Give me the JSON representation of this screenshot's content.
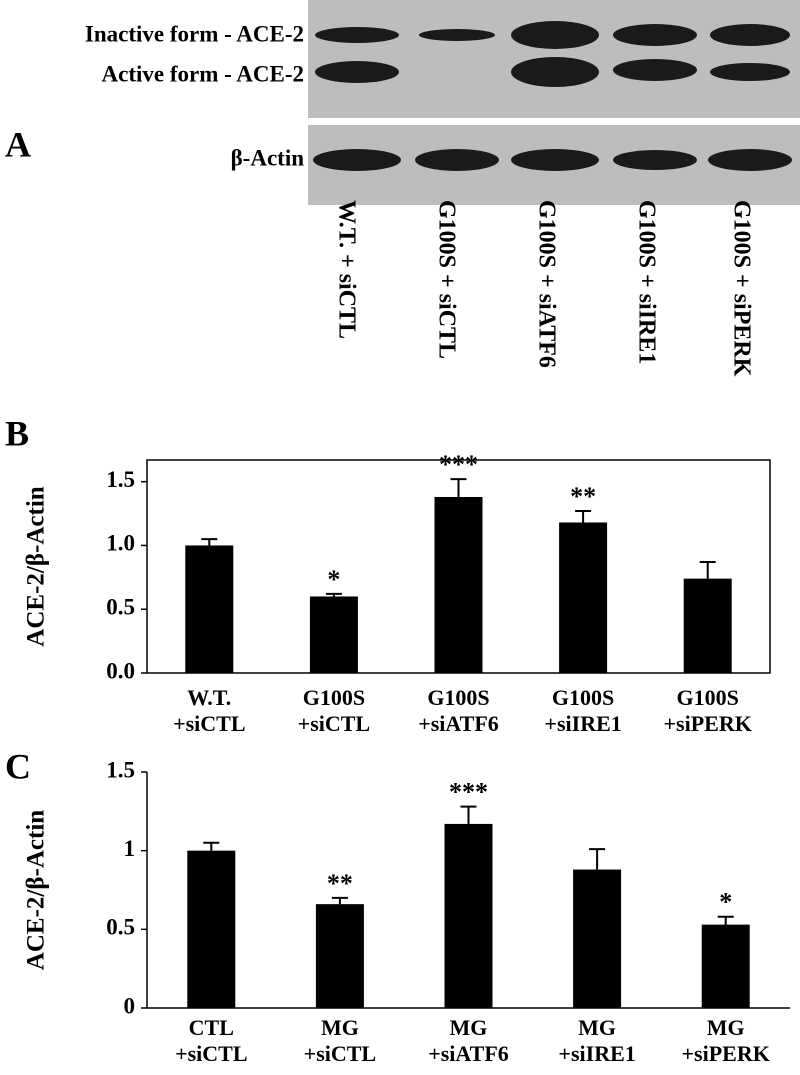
{
  "blot": {
    "panel_label": "A",
    "band_labels": [
      "Inactive form - ACE-2",
      "Active form - ACE-2",
      "β-Actin"
    ],
    "lane_labels": [
      "W.T. + siCTL",
      "G100S + siCTL",
      "G100S + siATF6",
      "G100S + siIRE1",
      "G100S + siPERK"
    ]
  },
  "chart_data": [
    {
      "type": "bar",
      "panel_label": "B",
      "y_label": "ACE-2/β-Actin",
      "categories": [
        "W.T.\n+siCTL",
        "G100S\n+siCTL",
        "G100S\n+siATF6",
        "G100S\n+siIRE1",
        "G100S\n+siPERK"
      ],
      "values": [
        1.0,
        0.6,
        1.38,
        1.18,
        0.74
      ],
      "errors": [
        0.05,
        0.02,
        0.14,
        0.09,
        0.13
      ],
      "annotations": [
        null,
        "*",
        "***",
        "**",
        null
      ],
      "color": "#000000",
      "frame": true,
      "ylim": [
        0,
        1.67
      ],
      "yticks": [
        {
          "value": 0,
          "label": "0.0"
        },
        {
          "value": 0.5,
          "label": "0.5"
        },
        {
          "value": 1,
          "label": "1.0"
        },
        {
          "value": 1.5,
          "label": "1.5"
        }
      ]
    },
    {
      "type": "bar",
      "panel_label": "C",
      "y_label": "ACE-2/β-Actin",
      "categories": [
        "CTL\n+siCTL",
        "MG\n+siCTL",
        "MG\n+siATF6",
        "MG\n+siIRE1",
        "MG\n+siPERK"
      ],
      "values": [
        1.0,
        0.66,
        1.17,
        0.88,
        0.53
      ],
      "errors": [
        0.05,
        0.04,
        0.11,
        0.13,
        0.05
      ],
      "annotations": [
        null,
        "**",
        "***",
        null,
        "*"
      ],
      "color": "#000000",
      "frame": false,
      "ylim": [
        0,
        1.5
      ],
      "yticks": [
        0,
        0.5,
        1,
        1.5
      ]
    }
  ]
}
